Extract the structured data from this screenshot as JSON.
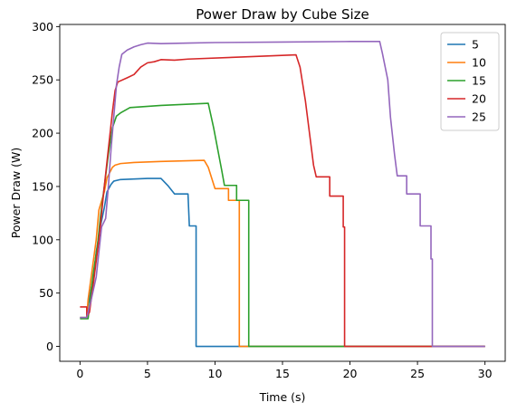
{
  "chart_data": {
    "type": "line",
    "title": "Power Draw by Cube Size",
    "xlabel": "Time (s)",
    "ylabel": "Power Draw (W)",
    "xlim": [
      -1.5,
      31.5
    ],
    "ylim": [
      -14,
      302
    ],
    "xticks": [
      0,
      5,
      10,
      15,
      20,
      25,
      30
    ],
    "yticks": [
      0,
      50,
      100,
      150,
      200,
      250,
      300
    ],
    "grid": false,
    "legend_position": "top-right",
    "series": [
      {
        "name": "5",
        "color": "#1f77b4",
        "points": [
          [
            0,
            27
          ],
          [
            0.5,
            27
          ],
          [
            0.6,
            40
          ],
          [
            1.0,
            65
          ],
          [
            1.2,
            88
          ],
          [
            1.5,
            112
          ],
          [
            1.8,
            130
          ],
          [
            2.0,
            145
          ],
          [
            2.3,
            152
          ],
          [
            2.5,
            155
          ],
          [
            3,
            156.5
          ],
          [
            5,
            157.5
          ],
          [
            6,
            157.5
          ],
          [
            6.5,
            151
          ],
          [
            7.0,
            143
          ],
          [
            8.0,
            143
          ],
          [
            8.1,
            113
          ],
          [
            8.6,
            113
          ],
          [
            8.6,
            0
          ],
          [
            30,
            0
          ]
        ]
      },
      {
        "name": "10",
        "color": "#ff7f0e",
        "points": [
          [
            0,
            27
          ],
          [
            0.5,
            27
          ],
          [
            0.6,
            44
          ],
          [
            1.2,
            100
          ],
          [
            1.4,
            128
          ],
          [
            1.8,
            145
          ],
          [
            2.0,
            158
          ],
          [
            2.4,
            168
          ],
          [
            2.6,
            170
          ],
          [
            3.0,
            171.5
          ],
          [
            4,
            172.5
          ],
          [
            6,
            173.5
          ],
          [
            9.2,
            174.5
          ],
          [
            9.5,
            168
          ],
          [
            10,
            148
          ],
          [
            11,
            148
          ],
          [
            11,
            137
          ],
          [
            11.8,
            137
          ],
          [
            11.8,
            0
          ],
          [
            30,
            0
          ]
        ]
      },
      {
        "name": "15",
        "color": "#2ca02c",
        "points": [
          [
            0,
            26
          ],
          [
            0.6,
            26
          ],
          [
            0.8,
            50
          ],
          [
            1.0,
            70
          ],
          [
            1.3,
            95
          ],
          [
            1.5,
            120
          ],
          [
            1.8,
            150
          ],
          [
            2.1,
            180
          ],
          [
            2.4,
            205
          ],
          [
            2.7,
            216
          ],
          [
            3.0,
            219
          ],
          [
            3.7,
            224
          ],
          [
            6,
            226
          ],
          [
            9.5,
            228
          ],
          [
            9.9,
            205
          ],
          [
            10.5,
            165
          ],
          [
            10.7,
            151
          ],
          [
            11.6,
            151
          ],
          [
            11.6,
            137
          ],
          [
            12.5,
            137
          ],
          [
            12.5,
            0
          ],
          [
            30,
            0
          ]
        ]
      },
      {
        "name": "20",
        "color": "#d62728",
        "points": [
          [
            0,
            37
          ],
          [
            0.5,
            37
          ],
          [
            0.5,
            28
          ],
          [
            0.7,
            32
          ],
          [
            1.0,
            60
          ],
          [
            1.4,
            100
          ],
          [
            1.8,
            150
          ],
          [
            2.1,
            185
          ],
          [
            2.4,
            220
          ],
          [
            2.6,
            240
          ],
          [
            2.8,
            248
          ],
          [
            3.5,
            252
          ],
          [
            4.0,
            255
          ],
          [
            4.5,
            262
          ],
          [
            5,
            266
          ],
          [
            5.5,
            267
          ],
          [
            6,
            269
          ],
          [
            7,
            268.5
          ],
          [
            8,
            269.5
          ],
          [
            12,
            271.5
          ],
          [
            16.0,
            273.5
          ],
          [
            16.3,
            262
          ],
          [
            16.7,
            230
          ],
          [
            17.0,
            200
          ],
          [
            17.3,
            170
          ],
          [
            17.5,
            159
          ],
          [
            18.5,
            159
          ],
          [
            18.5,
            141
          ],
          [
            19.5,
            141
          ],
          [
            19.5,
            112
          ],
          [
            19.6,
            112
          ],
          [
            19.6,
            0
          ],
          [
            30,
            0
          ]
        ]
      },
      {
        "name": "25",
        "color": "#9467bd",
        "points": [
          [
            0,
            27
          ],
          [
            0.5,
            27
          ],
          [
            0.8,
            42
          ],
          [
            1.2,
            65
          ],
          [
            1.6,
            112
          ],
          [
            1.9,
            120
          ],
          [
            2.1,
            150
          ],
          [
            2.3,
            185
          ],
          [
            2.5,
            215
          ],
          [
            2.7,
            245
          ],
          [
            2.9,
            262
          ],
          [
            3.1,
            274
          ],
          [
            3.5,
            278
          ],
          [
            4,
            281
          ],
          [
            4.5,
            283
          ],
          [
            5,
            284.5
          ],
          [
            6,
            284
          ],
          [
            8,
            284.5
          ],
          [
            10,
            285
          ],
          [
            15,
            285.5
          ],
          [
            20,
            286
          ],
          [
            22.2,
            286
          ],
          [
            22.4,
            275
          ],
          [
            22.8,
            250
          ],
          [
            23.0,
            215
          ],
          [
            23.3,
            180
          ],
          [
            23.5,
            160
          ],
          [
            24.2,
            160
          ],
          [
            24.2,
            143
          ],
          [
            25.2,
            143
          ],
          [
            25.2,
            113
          ],
          [
            26.0,
            113
          ],
          [
            26.0,
            82
          ],
          [
            26.1,
            82
          ],
          [
            26.1,
            0
          ],
          [
            30,
            0
          ]
        ]
      }
    ]
  }
}
